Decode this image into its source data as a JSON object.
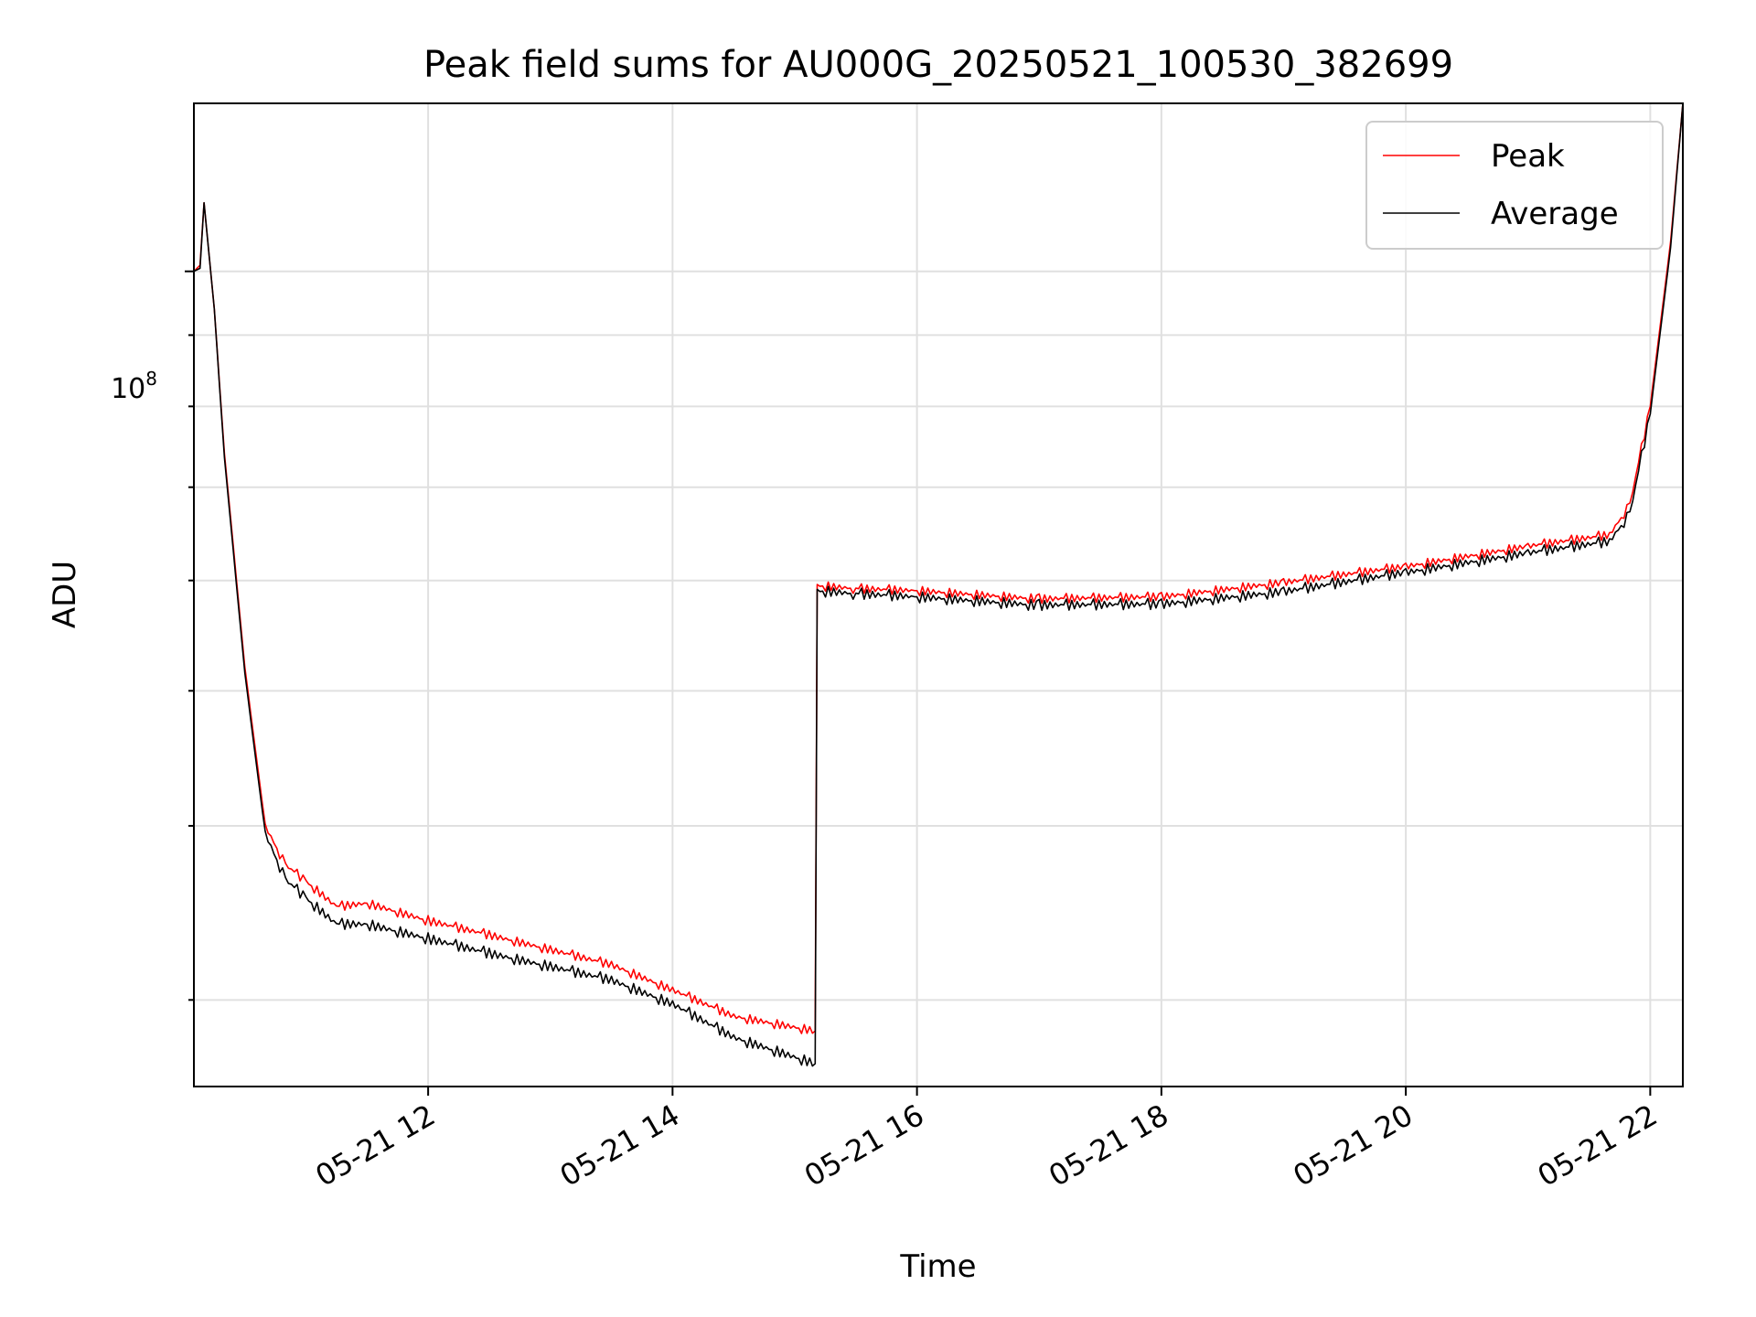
{
  "chart_data": {
    "type": "line",
    "title": "Peak field sums for AU000G_20250521_100530_382699",
    "xlabel": "Time",
    "ylabel": "ADU",
    "y_scale": "log",
    "y_tick_label": {
      "base": "10",
      "exp": "8"
    },
    "xlim": [
      "2025-05-21 10:05",
      "2025-05-21 22:16"
    ],
    "ylim": [
      26000000,
      132000000
    ],
    "x_ticks": [
      "05-21 12",
      "05-21 14",
      "05-21 16",
      "05-21 18",
      "05-21 20",
      "05-21 22"
    ],
    "x_tick_times": [
      "2025-05-21 12:00",
      "2025-05-21 14:00",
      "2025-05-21 16:00",
      "2025-05-21 18:00",
      "2025-05-21 20:00",
      "2025-05-21 22:00"
    ],
    "grid": true,
    "legend_position": "top-right",
    "series": [
      {
        "name": "Peak",
        "color": "#ff0000",
        "x": [
          "2025-05-21 10:05",
          "2025-05-21 10:08",
          "2025-05-21 10:10",
          "2025-05-21 10:15",
          "2025-05-21 10:20",
          "2025-05-21 10:30",
          "2025-05-21 10:40",
          "2025-05-21 10:50",
          "2025-05-21 11:00",
          "2025-05-21 11:15",
          "2025-05-21 11:30",
          "2025-05-21 12:00",
          "2025-05-21 12:30",
          "2025-05-21 13:00",
          "2025-05-21 13:30",
          "2025-05-21 14:00",
          "2025-05-21 14:30",
          "2025-05-21 15:10",
          "2025-05-21 15:11",
          "2025-05-21 15:30",
          "2025-05-21 16:00",
          "2025-05-21 17:00",
          "2025-05-21 18:00",
          "2025-05-21 19:00",
          "2025-05-21 20:00",
          "2025-05-21 21:00",
          "2025-05-21 21:40",
          "2025-05-21 21:50",
          "2025-05-21 22:00",
          "2025-05-21 22:10",
          "2025-05-21 22:16"
        ],
        "y": [
          100000000,
          101000000,
          112000000,
          94000000,
          74000000,
          52000000,
          40000000,
          37500000,
          36500000,
          35000000,
          35200000,
          34200000,
          33400000,
          32600000,
          31800000,
          30500000,
          29200000,
          28500000,
          59500000,
          59200000,
          59000000,
          58200000,
          58400000,
          59800000,
          61400000,
          63500000,
          64700000,
          68000000,
          80000000,
          105000000,
          132000000
        ]
      },
      {
        "name": "Average",
        "color": "#000000",
        "x": [
          "2025-05-21 10:05",
          "2025-05-21 10:08",
          "2025-05-21 10:10",
          "2025-05-21 10:15",
          "2025-05-21 10:20",
          "2025-05-21 10:30",
          "2025-05-21 10:40",
          "2025-05-21 10:50",
          "2025-05-21 11:00",
          "2025-05-21 11:15",
          "2025-05-21 11:30",
          "2025-05-21 12:00",
          "2025-05-21 12:30",
          "2025-05-21 13:00",
          "2025-05-21 13:30",
          "2025-05-21 14:00",
          "2025-05-21 14:30",
          "2025-05-21 15:10",
          "2025-05-21 15:11",
          "2025-05-21 15:30",
          "2025-05-21 16:00",
          "2025-05-21 17:00",
          "2025-05-21 18:00",
          "2025-05-21 19:00",
          "2025-05-21 20:00",
          "2025-05-21 21:00",
          "2025-05-21 21:40",
          "2025-05-21 21:50",
          "2025-05-21 22:00",
          "2025-05-21 22:10",
          "2025-05-21 22:16"
        ],
        "y": [
          100000000,
          100500000,
          112000000,
          94000000,
          73500000,
          51500000,
          39500000,
          36600000,
          35500000,
          34000000,
          34000000,
          33200000,
          32400000,
          31700000,
          31000000,
          29800000,
          28200000,
          27000000,
          59000000,
          58700000,
          58400000,
          57600000,
          57700000,
          58900000,
          60800000,
          62800000,
          64000000,
          67000000,
          79000000,
          104000000,
          132000000
        ]
      }
    ]
  }
}
